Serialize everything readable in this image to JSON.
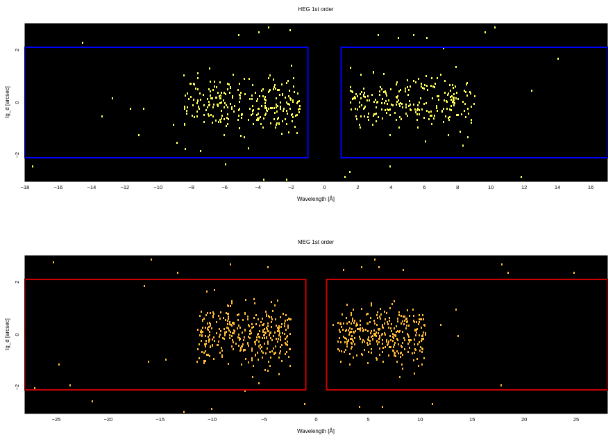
{
  "chart_data": [
    {
      "type": "heatmap",
      "title": "HEG 1st order",
      "xlabel": "Wavelength [Å]",
      "ylabel": "tg_d [arcsec]",
      "xlim": [
        -18,
        17
      ],
      "ylim": [
        -3,
        3
      ],
      "x_ticks": [
        -18,
        -16,
        -14,
        -12,
        -10,
        -8,
        -6,
        -4,
        -2,
        0,
        2,
        4,
        6,
        8,
        10,
        12,
        14,
        16
      ],
      "y_ticks": [
        -2,
        0,
        2
      ],
      "grid": false,
      "background_color": "#000000",
      "point_color": "#ffff55",
      "region_color": "#0000ff",
      "regions": [
        {
          "x": [
            -18,
            -1
          ],
          "y": [
            -2.1,
            2.1
          ]
        },
        {
          "x": [
            1,
            17
          ],
          "y": [
            -2.1,
            2.1
          ]
        }
      ],
      "clusters": [
        {
          "x_range": [
            -8.5,
            -1.5
          ],
          "y_center": 0,
          "y_spread": 0.5,
          "count": 260
        },
        {
          "x_range": [
            1.5,
            9.0
          ],
          "y_center": 0,
          "y_spread": 0.5,
          "count": 240
        }
      ],
      "outliers": [
        [
          -17.6,
          -2.4
        ],
        [
          -14.6,
          2.3
        ],
        [
          -13.4,
          -0.5
        ],
        [
          -12.8,
          0.2
        ],
        [
          -11.7,
          -0.2
        ],
        [
          -11.2,
          -1.2
        ],
        [
          -10.9,
          -0.2
        ],
        [
          -9.1,
          -0.8
        ],
        [
          -8.9,
          -1.5
        ],
        [
          -7.5,
          -1.8
        ],
        [
          -6.0,
          -2.3
        ],
        [
          -5.2,
          2.6
        ],
        [
          -3.4,
          2.9
        ],
        [
          -2.1,
          2.8
        ],
        [
          -4.0,
          2.7
        ],
        [
          -2.3,
          -2.9
        ],
        [
          -4.8,
          -3.0
        ],
        [
          1.2,
          -2.8
        ],
        [
          2.6,
          -3.0
        ],
        [
          3.9,
          -2.4
        ],
        [
          5.3,
          2.6
        ],
        [
          6.1,
          2.5
        ],
        [
          7.1,
          2.1
        ],
        [
          9.6,
          2.7
        ],
        [
          10.2,
          2.9
        ],
        [
          12.4,
          0.5
        ],
        [
          13.0,
          -3.0
        ],
        [
          14.0,
          1.7
        ],
        [
          8.3,
          -1.6
        ],
        [
          11.8,
          -2.8
        ],
        [
          -4.6,
          -1.7
        ],
        [
          -3.7,
          -2.9
        ],
        [
          3.2,
          2.6
        ],
        [
          4.4,
          2.5
        ],
        [
          1.5,
          -2.6
        ]
      ]
    },
    {
      "type": "heatmap",
      "title": "MEG 1st order",
      "xlabel": "Wavelength [Å]",
      "ylabel": "tg_d [arcsec]",
      "xlim": [
        -28,
        28
      ],
      "ylim": [
        -3,
        3
      ],
      "x_ticks": [
        -25,
        -20,
        -15,
        -10,
        -5,
        0,
        5,
        10,
        15,
        20,
        25
      ],
      "y_ticks": [
        -2,
        0,
        2
      ],
      "grid": false,
      "background_color": "#000000",
      "point_color": "#ffbb33",
      "region_color": "#cc0000",
      "regions": [
        {
          "x": [
            -28,
            -1
          ],
          "y": [
            -2.1,
            2.1
          ]
        },
        {
          "x": [
            1,
            28
          ],
          "y": [
            -2.1,
            2.1
          ]
        }
      ],
      "clusters": [
        {
          "x_range": [
            -11.5,
            -2.5
          ],
          "y_center": 0,
          "y_spread": 0.55,
          "count": 340
        },
        {
          "x_range": [
            2.0,
            10.5
          ],
          "y_center": 0,
          "y_spread": 0.55,
          "count": 320
        }
      ],
      "outliers": [
        [
          -27.1,
          -2.0
        ],
        [
          -25.3,
          2.8
        ],
        [
          -24.8,
          -1.1
        ],
        [
          -23.7,
          -1.9
        ],
        [
          -21.6,
          -2.5
        ],
        [
          -20.8,
          -3.0
        ],
        [
          -16.6,
          1.9
        ],
        [
          -15.9,
          2.9
        ],
        [
          -13.4,
          2.4
        ],
        [
          -12.8,
          -2.9
        ],
        [
          -16.2,
          -1.0
        ],
        [
          -14.5,
          -0.9
        ],
        [
          -8.3,
          2.7
        ],
        [
          -6.9,
          -2.1
        ],
        [
          -4.7,
          2.6
        ],
        [
          -5.6,
          -1.8
        ],
        [
          -1.2,
          -2.6
        ],
        [
          -10.1,
          -2.8
        ],
        [
          2.6,
          2.5
        ],
        [
          4.3,
          2.6
        ],
        [
          5.6,
          2.9
        ],
        [
          6.0,
          2.6
        ],
        [
          8.3,
          2.5
        ],
        [
          13.4,
          1.0
        ],
        [
          11.1,
          -2.6
        ],
        [
          13.6,
          0.0
        ],
        [
          11.9,
          0.4
        ],
        [
          17.7,
          -1.9
        ],
        [
          17.8,
          2.7
        ],
        [
          18.4,
          2.4
        ],
        [
          24.7,
          2.4
        ],
        [
          6.3,
          -2.7
        ],
        [
          4.1,
          -2.7
        ],
        [
          1.6,
          0.4
        ]
      ]
    }
  ]
}
